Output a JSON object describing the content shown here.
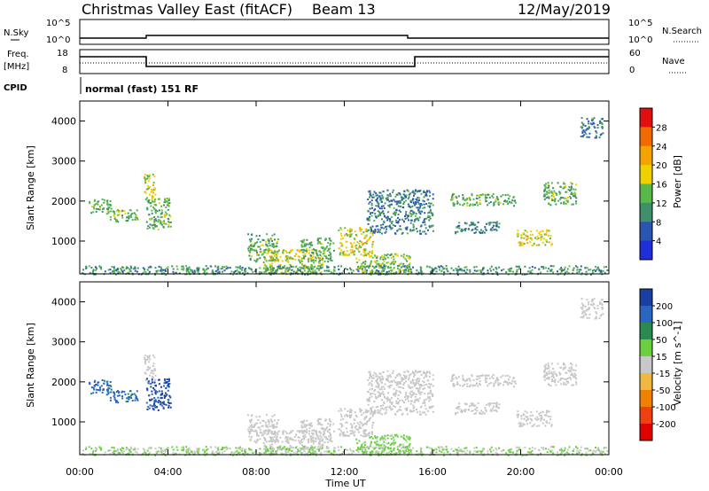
{
  "header": {
    "title": "Christmas Valley East (fitACF)",
    "beam": "Beam 13",
    "date": "12/May/2019"
  },
  "top_panels": {
    "nsky": {
      "label": "N.Sky",
      "ticks_left": [
        "10^5",
        "10^0"
      ]
    },
    "nsearch": {
      "label": "N.Search",
      "ticks_right": [
        "10^5",
        "10^0"
      ]
    },
    "freq": {
      "label": "Freq.",
      "unit": "[MHz]",
      "ticks_left": [
        "18",
        "8"
      ]
    },
    "nave": {
      "label": "Nave",
      "ticks_right": [
        "60",
        "0"
      ]
    },
    "cpid": {
      "label": "CPID",
      "value": "normal (fast) 151 RF"
    }
  },
  "colors": {
    "power": [
      "#1f2fd8",
      "#2a55b0",
      "#3f8f6a",
      "#59b84a",
      "#f0d000",
      "#f5a300",
      "#f06a00",
      "#e01010"
    ],
    "velocity": [
      "#1a3fa0",
      "#2a66c0",
      "#2a8a50",
      "#6bd040",
      "#c8c8c8",
      "#f0b840",
      "#f08000",
      "#f04010",
      "#e00000"
    ]
  },
  "chart_data": [
    {
      "type": "heatmap",
      "name": "power",
      "x_ticks": [
        "00:00",
        "04:00",
        "08:00",
        "12:00",
        "16:00",
        "20:00",
        "00:00"
      ],
      "xlim_hours": [
        0,
        24
      ],
      "ylabel": "Slant Range [km]",
      "y_ticks": [
        "4000",
        "3000",
        "2000",
        "1000"
      ],
      "ylim": [
        180,
        4500
      ],
      "colorbar": {
        "label": "Power [dB]",
        "ticks": [
          "28",
          "24",
          "20",
          "16",
          "12",
          "8",
          "4"
        ],
        "range": [
          0,
          30
        ]
      },
      "regions": [
        {
          "t": [
            0.4,
            1.4
          ],
          "r": [
            1700,
            2100
          ],
          "v": 12
        },
        {
          "t": [
            1.2,
            2.6
          ],
          "r": [
            1500,
            1800
          ],
          "v": 12
        },
        {
          "t": [
            2.9,
            3.4
          ],
          "r": [
            1900,
            2700
          ],
          "v": 16
        },
        {
          "t": [
            3.0,
            4.1
          ],
          "r": [
            1300,
            2100
          ],
          "v": 12
        },
        {
          "t": [
            7.6,
            9.0
          ],
          "r": [
            500,
            1200
          ],
          "v": 12
        },
        {
          "t": [
            8.3,
            11.0
          ],
          "r": [
            200,
            800
          ],
          "v": 16
        },
        {
          "t": [
            10.0,
            11.5
          ],
          "r": [
            500,
            1100
          ],
          "v": 12
        },
        {
          "t": [
            11.7,
            13.3
          ],
          "r": [
            650,
            1350
          ],
          "v": 16
        },
        {
          "t": [
            12.5,
            15.0
          ],
          "r": [
            200,
            700
          ],
          "v": 14
        },
        {
          "t": [
            13.0,
            16.0
          ],
          "r": [
            1200,
            2300
          ],
          "v": 8
        },
        {
          "t": [
            16.8,
            19.8
          ],
          "r": [
            1900,
            2200
          ],
          "v": 12
        },
        {
          "t": [
            17.0,
            19.0
          ],
          "r": [
            1200,
            1500
          ],
          "v": 8
        },
        {
          "t": [
            19.8,
            21.4
          ],
          "r": [
            900,
            1300
          ],
          "v": 16
        },
        {
          "t": [
            21.0,
            22.5
          ],
          "r": [
            1900,
            2500
          ],
          "v": 12
        },
        {
          "t": [
            22.7,
            23.7
          ],
          "r": [
            3600,
            4100
          ],
          "v": 8
        },
        {
          "t": [
            0.0,
            24.0
          ],
          "r": [
            180,
            400
          ],
          "v": 10
        }
      ]
    },
    {
      "type": "heatmap",
      "name": "velocity",
      "x_ticks": [
        "00:00",
        "04:00",
        "08:00",
        "12:00",
        "16:00",
        "20:00",
        "00:00"
      ],
      "xlim_hours": [
        0,
        24
      ],
      "xlabel": "Time UT",
      "ylabel": "Slant Range [km]",
      "y_ticks": [
        "4000",
        "3000",
        "2000",
        "1000"
      ],
      "ylim": [
        180,
        4500
      ],
      "colorbar": {
        "label": "Velocity [m s^-1]",
        "ticks": [
          "200",
          "100",
          "50",
          "15",
          "-15",
          "-50",
          "-100",
          "-200"
        ],
        "range": [
          -250,
          250
        ]
      },
      "regions": [
        {
          "t": [
            0.4,
            1.4
          ],
          "r": [
            1700,
            2100
          ],
          "v": 150
        },
        {
          "t": [
            1.2,
            2.6
          ],
          "r": [
            1500,
            1800
          ],
          "v": 150
        },
        {
          "t": [
            2.9,
            3.4
          ],
          "r": [
            1900,
            2700
          ],
          "v": 0
        },
        {
          "t": [
            3.0,
            4.1
          ],
          "r": [
            1300,
            2100
          ],
          "v": 200
        },
        {
          "t": [
            7.6,
            9.0
          ],
          "r": [
            500,
            1200
          ],
          "v": 0
        },
        {
          "t": [
            8.3,
            11.0
          ],
          "r": [
            200,
            800
          ],
          "v": 0
        },
        {
          "t": [
            10.0,
            11.5
          ],
          "r": [
            500,
            1100
          ],
          "v": 0
        },
        {
          "t": [
            11.7,
            13.3
          ],
          "r": [
            650,
            1350
          ],
          "v": 0
        },
        {
          "t": [
            12.5,
            15.0
          ],
          "r": [
            200,
            700
          ],
          "v": 40
        },
        {
          "t": [
            13.0,
            16.0
          ],
          "r": [
            1200,
            2300
          ],
          "v": 0
        },
        {
          "t": [
            16.8,
            19.8
          ],
          "r": [
            1900,
            2200
          ],
          "v": 0
        },
        {
          "t": [
            17.0,
            19.0
          ],
          "r": [
            1200,
            1500
          ],
          "v": 0
        },
        {
          "t": [
            19.8,
            21.4
          ],
          "r": [
            900,
            1300
          ],
          "v": 0
        },
        {
          "t": [
            21.0,
            22.5
          ],
          "r": [
            1900,
            2500
          ],
          "v": 0
        },
        {
          "t": [
            22.7,
            23.7
          ],
          "r": [
            3600,
            4100
          ],
          "v": 0
        },
        {
          "t": [
            0.0,
            24.0
          ],
          "r": [
            180,
            400
          ],
          "v": 30
        }
      ]
    }
  ]
}
